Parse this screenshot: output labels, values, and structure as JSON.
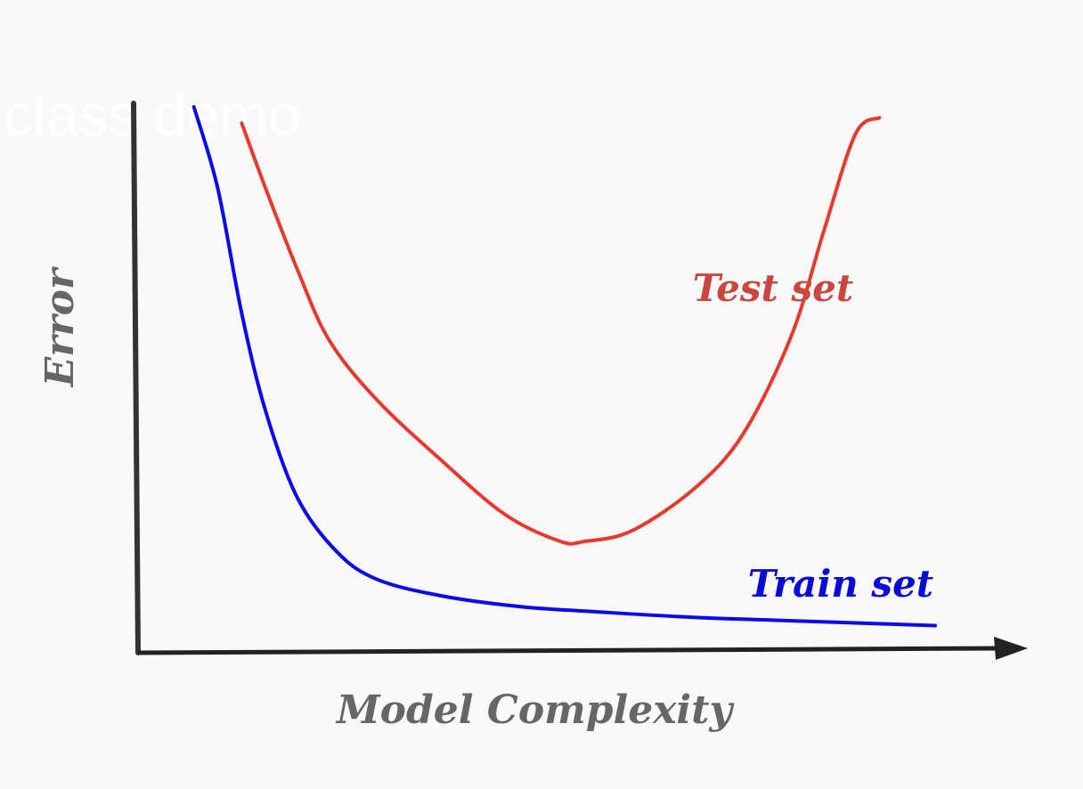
{
  "watermark": "class demo",
  "chart_data": {
    "type": "line",
    "title": "",
    "xlabel": "Model Complexity",
    "ylabel": "Error",
    "x_ticks": false,
    "y_ticks": false,
    "grid": false,
    "xlim": [
      0,
      100
    ],
    "ylim": [
      0,
      100
    ],
    "series": [
      {
        "name": "Test set",
        "color": "#e8392e",
        "label_color": "#c9473f",
        "x": [
          13,
          16,
          20,
          24,
          30,
          38,
          46,
          53,
          56,
          62,
          70,
          76,
          82,
          86,
          90,
          93
        ],
        "y": [
          97,
          85,
          70,
          57,
          46,
          35,
          25,
          20,
          20,
          22,
          30,
          40,
          58,
          77,
          95,
          98
        ]
      },
      {
        "name": "Train set",
        "color": "#0a0aeb",
        "label_color": "#0a0ad6",
        "x": [
          7,
          10,
          13,
          16,
          20,
          25,
          30,
          38,
          48,
          58,
          70,
          80,
          90,
          100
        ],
        "y": [
          100,
          85,
          62,
          44,
          28,
          18,
          13,
          10,
          8,
          7,
          6,
          5.5,
          5,
          4.5
        ]
      }
    ]
  }
}
